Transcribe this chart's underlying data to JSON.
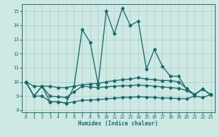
{
  "xlabel": "Humidex (Indice chaleur)",
  "xlim": [
    -0.5,
    23.5
  ],
  "ylim": [
    7.85,
    15.5
  ],
  "yticks": [
    8,
    9,
    10,
    11,
    12,
    13,
    14,
    15
  ],
  "xticks": [
    0,
    1,
    2,
    3,
    4,
    5,
    6,
    7,
    8,
    9,
    10,
    11,
    12,
    13,
    14,
    15,
    16,
    17,
    18,
    19,
    20,
    21,
    22,
    23
  ],
  "bg_color": "#cee8e4",
  "grid_color": "#b0d0cc",
  "line_color": "#1a6b6b",
  "line_width": 1.0,
  "marker_size": 2.2,
  "series": [
    [
      10.0,
      9.0,
      9.7,
      8.6,
      8.6,
      8.5,
      9.7,
      13.7,
      12.8,
      9.8,
      15.0,
      13.4,
      15.2,
      14.0,
      14.3,
      10.9,
      12.3,
      11.1,
      10.4,
      10.4,
      9.5,
      9.1,
      9.5,
      9.1
    ],
    [
      10.0,
      9.7,
      9.7,
      9.7,
      9.6,
      9.6,
      9.7,
      9.8,
      9.85,
      9.9,
      10.0,
      10.1,
      10.15,
      10.2,
      10.3,
      10.2,
      10.15,
      10.1,
      10.1,
      10.0,
      9.55,
      9.1,
      9.5,
      9.1
    ],
    [
      10.0,
      9.0,
      9.7,
      9.0,
      8.95,
      8.9,
      9.3,
      9.7,
      9.65,
      9.6,
      9.65,
      9.7,
      9.72,
      9.75,
      9.78,
      9.75,
      9.7,
      9.65,
      9.6,
      9.55,
      9.4,
      9.1,
      9.5,
      9.1
    ],
    [
      10.0,
      9.0,
      9.0,
      8.6,
      8.6,
      8.5,
      8.6,
      8.7,
      8.72,
      8.75,
      8.8,
      8.85,
      8.9,
      8.92,
      8.95,
      8.93,
      8.9,
      8.87,
      8.85,
      8.83,
      8.8,
      9.0,
      8.9,
      9.1
    ]
  ]
}
